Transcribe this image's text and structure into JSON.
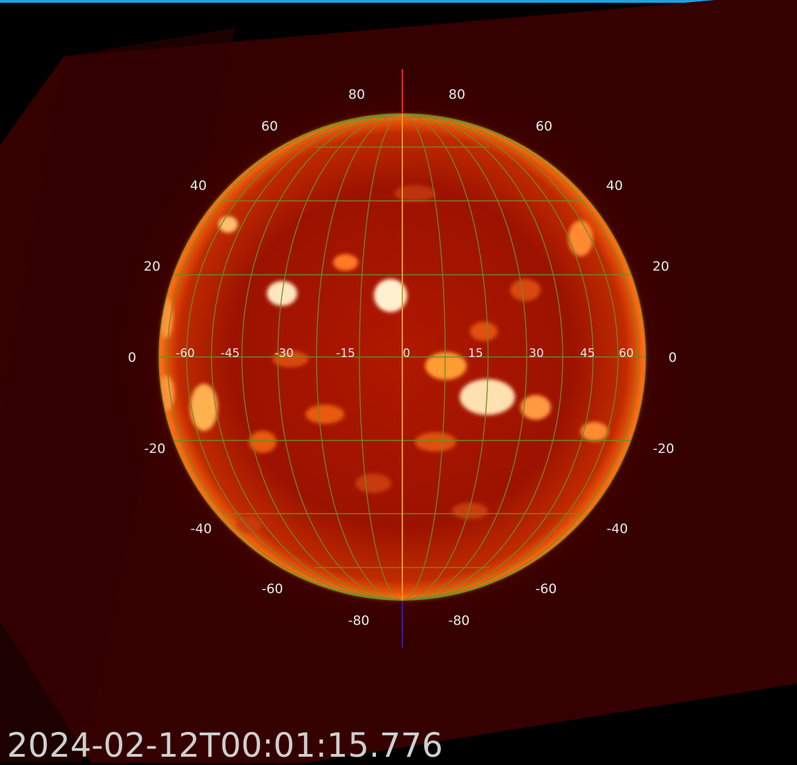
{
  "image": {
    "timestamp": "2024-02-12T00:01:15.776",
    "colors": {
      "accent_bar": "#1aa3e0",
      "background": "#000000",
      "field_of_view": "#3a0000",
      "disk_core": "#c21a00",
      "disk_edge": "#6a0400",
      "grid_line": "#6b8e23",
      "central_meridian": "#e0a020",
      "north_pole_axis": "#ff2020",
      "south_pole_axis": "#2020c0"
    }
  },
  "grid": {
    "latitude_labels_left": [
      "80",
      "60",
      "40",
      "20",
      "0",
      "-20",
      "-40",
      "-60",
      "-80"
    ],
    "latitude_labels_right": [
      "80",
      "60",
      "40",
      "20",
      "0",
      "-20",
      "-40",
      "-60",
      "-80"
    ],
    "longitude_labels": [
      "-60",
      "-45",
      "-30",
      "-15",
      "0",
      "15",
      "30",
      "45",
      "60"
    ]
  }
}
